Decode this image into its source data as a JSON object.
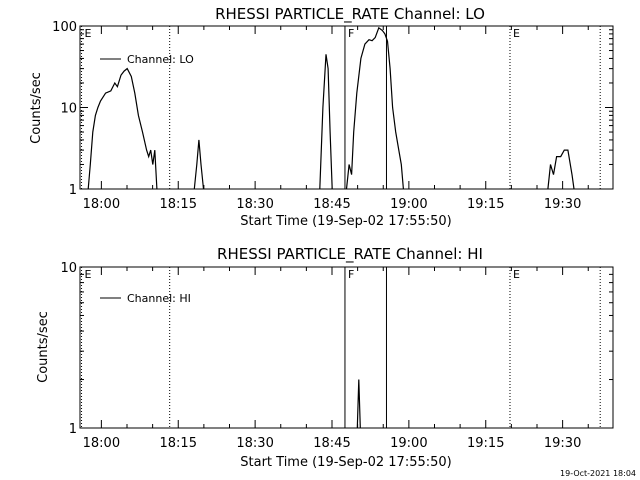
{
  "footer": "19-Oct-2021 18:04",
  "chart_data": [
    {
      "type": "line",
      "title": "RHESSI PARTICLE_RATE Channel: LO",
      "xlabel": "Start Time (19-Sep-02 17:55:50)",
      "ylabel": "Counts/sec",
      "x_unit": "minutes after 17:55:50",
      "xlim": [
        0,
        104
      ],
      "ylim": [
        1,
        100
      ],
      "yscale": "log",
      "xticks": [
        "18:00",
        "18:15",
        "18:30",
        "18:45",
        "19:00",
        "19:15",
        "19:30"
      ],
      "xtick_values": [
        4.17,
        19.17,
        34.17,
        49.17,
        64.17,
        79.17,
        94.17
      ],
      "yticks": [
        "1",
        "10",
        "100"
      ],
      "ytick_values": [
        1,
        10,
        100
      ],
      "legend": {
        "position": "top-left",
        "entries": [
          "Channel: LO"
        ]
      },
      "markers": [
        {
          "label": "E",
          "x": 0.3,
          "style": "dotted"
        },
        {
          "label": "",
          "x": 17.5,
          "style": "dotted"
        },
        {
          "label": "F",
          "x": 51.7,
          "style": "solid"
        },
        {
          "label": "",
          "x": 59.8,
          "style": "solid"
        },
        {
          "label": "E",
          "x": 83.9,
          "style": "dotted"
        },
        {
          "label": "",
          "x": 101.5,
          "style": "dotted"
        }
      ],
      "series": [
        {
          "name": "Channel: LO",
          "segments": [
            [
              [
                1.6,
                1
              ],
              [
                2.0,
                2
              ],
              [
                2.5,
                5
              ],
              [
                3.0,
                8
              ],
              [
                3.5,
                10
              ],
              [
                4.0,
                12
              ],
              [
                5.0,
                15
              ],
              [
                6.0,
                16
              ],
              [
                6.8,
                20
              ],
              [
                7.3,
                18
              ],
              [
                8.0,
                25
              ],
              [
                8.6,
                28
              ],
              [
                9.2,
                30
              ],
              [
                10.0,
                24
              ],
              [
                10.7,
                15
              ],
              [
                11.4,
                8
              ],
              [
                12.2,
                5
              ],
              [
                13.0,
                3
              ],
              [
                13.4,
                2.5
              ],
              [
                13.8,
                3
              ],
              [
                14.2,
                2
              ],
              [
                14.6,
                3
              ],
              [
                15.0,
                1
              ]
            ],
            [
              [
                22.3,
                1
              ],
              [
                22.8,
                2
              ],
              [
                23.2,
                4
              ],
              [
                23.6,
                2
              ],
              [
                24.1,
                1
              ]
            ],
            [
              [
                46.8,
                1
              ],
              [
                47.4,
                10
              ],
              [
                48.0,
                45
              ],
              [
                48.4,
                30
              ],
              [
                48.8,
                5
              ],
              [
                49.2,
                1
              ]
            ],
            [
              [
                52.0,
                1
              ],
              [
                52.5,
                2
              ],
              [
                53.0,
                1.5
              ],
              [
                53.4,
                5
              ],
              [
                54.0,
                15
              ],
              [
                54.8,
                40
              ],
              [
                55.6,
                60
              ],
              [
                56.4,
                68
              ],
              [
                57.0,
                66
              ],
              [
                57.6,
                72
              ],
              [
                58.3,
                95
              ],
              [
                59.0,
                88
              ],
              [
                59.5,
                80
              ],
              [
                60.0,
                65
              ],
              [
                60.5,
                30
              ],
              [
                61.0,
                10
              ],
              [
                61.6,
                5
              ],
              [
                62.2,
                3
              ],
              [
                62.7,
                2
              ],
              [
                63.1,
                1
              ]
            ],
            [
              [
                91.3,
                1
              ],
              [
                91.8,
                2
              ],
              [
                92.4,
                1.5
              ],
              [
                93.0,
                2.5
              ],
              [
                93.8,
                2.5
              ],
              [
                94.5,
                3
              ],
              [
                95.2,
                3
              ],
              [
                96.0,
                1.5
              ],
              [
                96.4,
                1
              ]
            ]
          ]
        }
      ]
    },
    {
      "type": "line",
      "title": "RHESSI PARTICLE_RATE Channel: HI",
      "xlabel": "Start Time (19-Sep-02 17:55:50)",
      "ylabel": "Counts/sec",
      "x_unit": "minutes after 17:55:50",
      "xlim": [
        0,
        104
      ],
      "ylim": [
        1,
        10
      ],
      "yscale": "log",
      "xticks": [
        "18:00",
        "18:15",
        "18:30",
        "18:45",
        "19:00",
        "19:15",
        "19:30"
      ],
      "xtick_values": [
        4.17,
        19.17,
        34.17,
        49.17,
        64.17,
        79.17,
        94.17
      ],
      "yticks": [
        "1",
        "10"
      ],
      "ytick_values": [
        1,
        10
      ],
      "legend": {
        "position": "top-left",
        "entries": [
          "Channel: HI"
        ]
      },
      "markers": [
        {
          "label": "E",
          "x": 0.3,
          "style": "dotted"
        },
        {
          "label": "",
          "x": 17.5,
          "style": "dotted"
        },
        {
          "label": "F",
          "x": 51.7,
          "style": "solid"
        },
        {
          "label": "",
          "x": 59.8,
          "style": "solid"
        },
        {
          "label": "E",
          "x": 83.9,
          "style": "dotted"
        },
        {
          "label": "",
          "x": 101.5,
          "style": "dotted"
        }
      ],
      "series": [
        {
          "name": "Channel: HI",
          "segments": [
            [
              [
                54.1,
                1
              ],
              [
                54.4,
                2
              ],
              [
                54.7,
                1
              ]
            ]
          ]
        }
      ]
    }
  ]
}
